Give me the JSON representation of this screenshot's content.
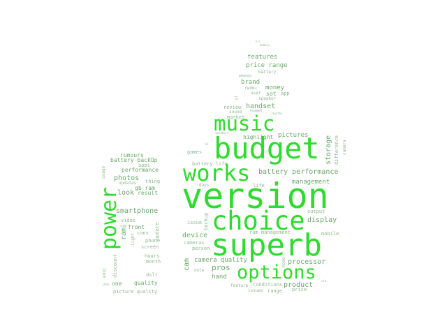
{
  "colors": {
    "background": "#ffffff",
    "bright_green": "#2edb2e",
    "muted_green": "#6aa86a",
    "pale_green": "#8fb88f"
  },
  "words": {
    "version": "version",
    "superb": "superb",
    "budget": "budget",
    "choice": "choice",
    "works": "works",
    "music": "music",
    "options": "options",
    "power": "power",
    "features": "features",
    "price_range": "price range",
    "brand": "brand",
    "money": "money",
    "sot": "sot",
    "app": "app",
    "handset": "handset",
    "review": "review",
    "sound": "sound",
    "market": "market",
    "highlight": "highlight",
    "pictures": "pictures",
    "battery_performance": "battery performance",
    "management": "management",
    "display": "display",
    "battery_life": "battery life",
    "games": "games",
    "u": "u",
    "storage": "storage",
    "difference": "difference",
    "camera_top": "camera",
    "battery_top": "battery",
    "phones": "phones",
    "redmi": "redmi",
    "user": "user",
    "speaker": "speaker",
    "ui": "ui",
    "huawei": "huawei",
    "hrs": "hrs",
    "memory": "memory",
    "speakers": "speakers",
    "months": "months",
    "days": "days",
    "life": "life",
    "issue": "issue",
    "backup": "backup",
    "device": "device",
    "cameras": "cameras",
    "person": "person",
    "camera_quality": "camera quality",
    "cam": "cam",
    "pros": "pros",
    "hand": "hand",
    "note": "note",
    "feature": "feature",
    "conditions": "conditions",
    "issues": "issues",
    "range": "range",
    "product": "product",
    "price": "price",
    "processor": "processor",
    "mobile": "mobile",
    "output": "output",
    "mode": "mode",
    "ram_management": "ram management",
    "rumours": "rumours",
    "battery_backup": "battery backup",
    "apps": "apps",
    "usage": "usage",
    "performance": "performance",
    "photos": "photos",
    "updates": "updates",
    "thing": "thing",
    "gb_ram": "gb ram",
    "look": "look",
    "result": "result",
    "smartphone": "smartphone",
    "video": "video",
    "sim": "sim",
    "front": "front",
    "ram": "ram",
    "cons": "cons",
    "update": "update",
    "light": "light",
    "phone": "phone",
    "screen": "screen",
    "hours": "hours",
    "month": "month",
    "emui": "emui",
    "discount": "discount",
    "one": "one",
    "use": "use",
    "quality": "quality",
    "dslr": "dslr",
    "picture_quality": "picture quality",
    "con": "con",
    "sim_small": "sim"
  }
}
